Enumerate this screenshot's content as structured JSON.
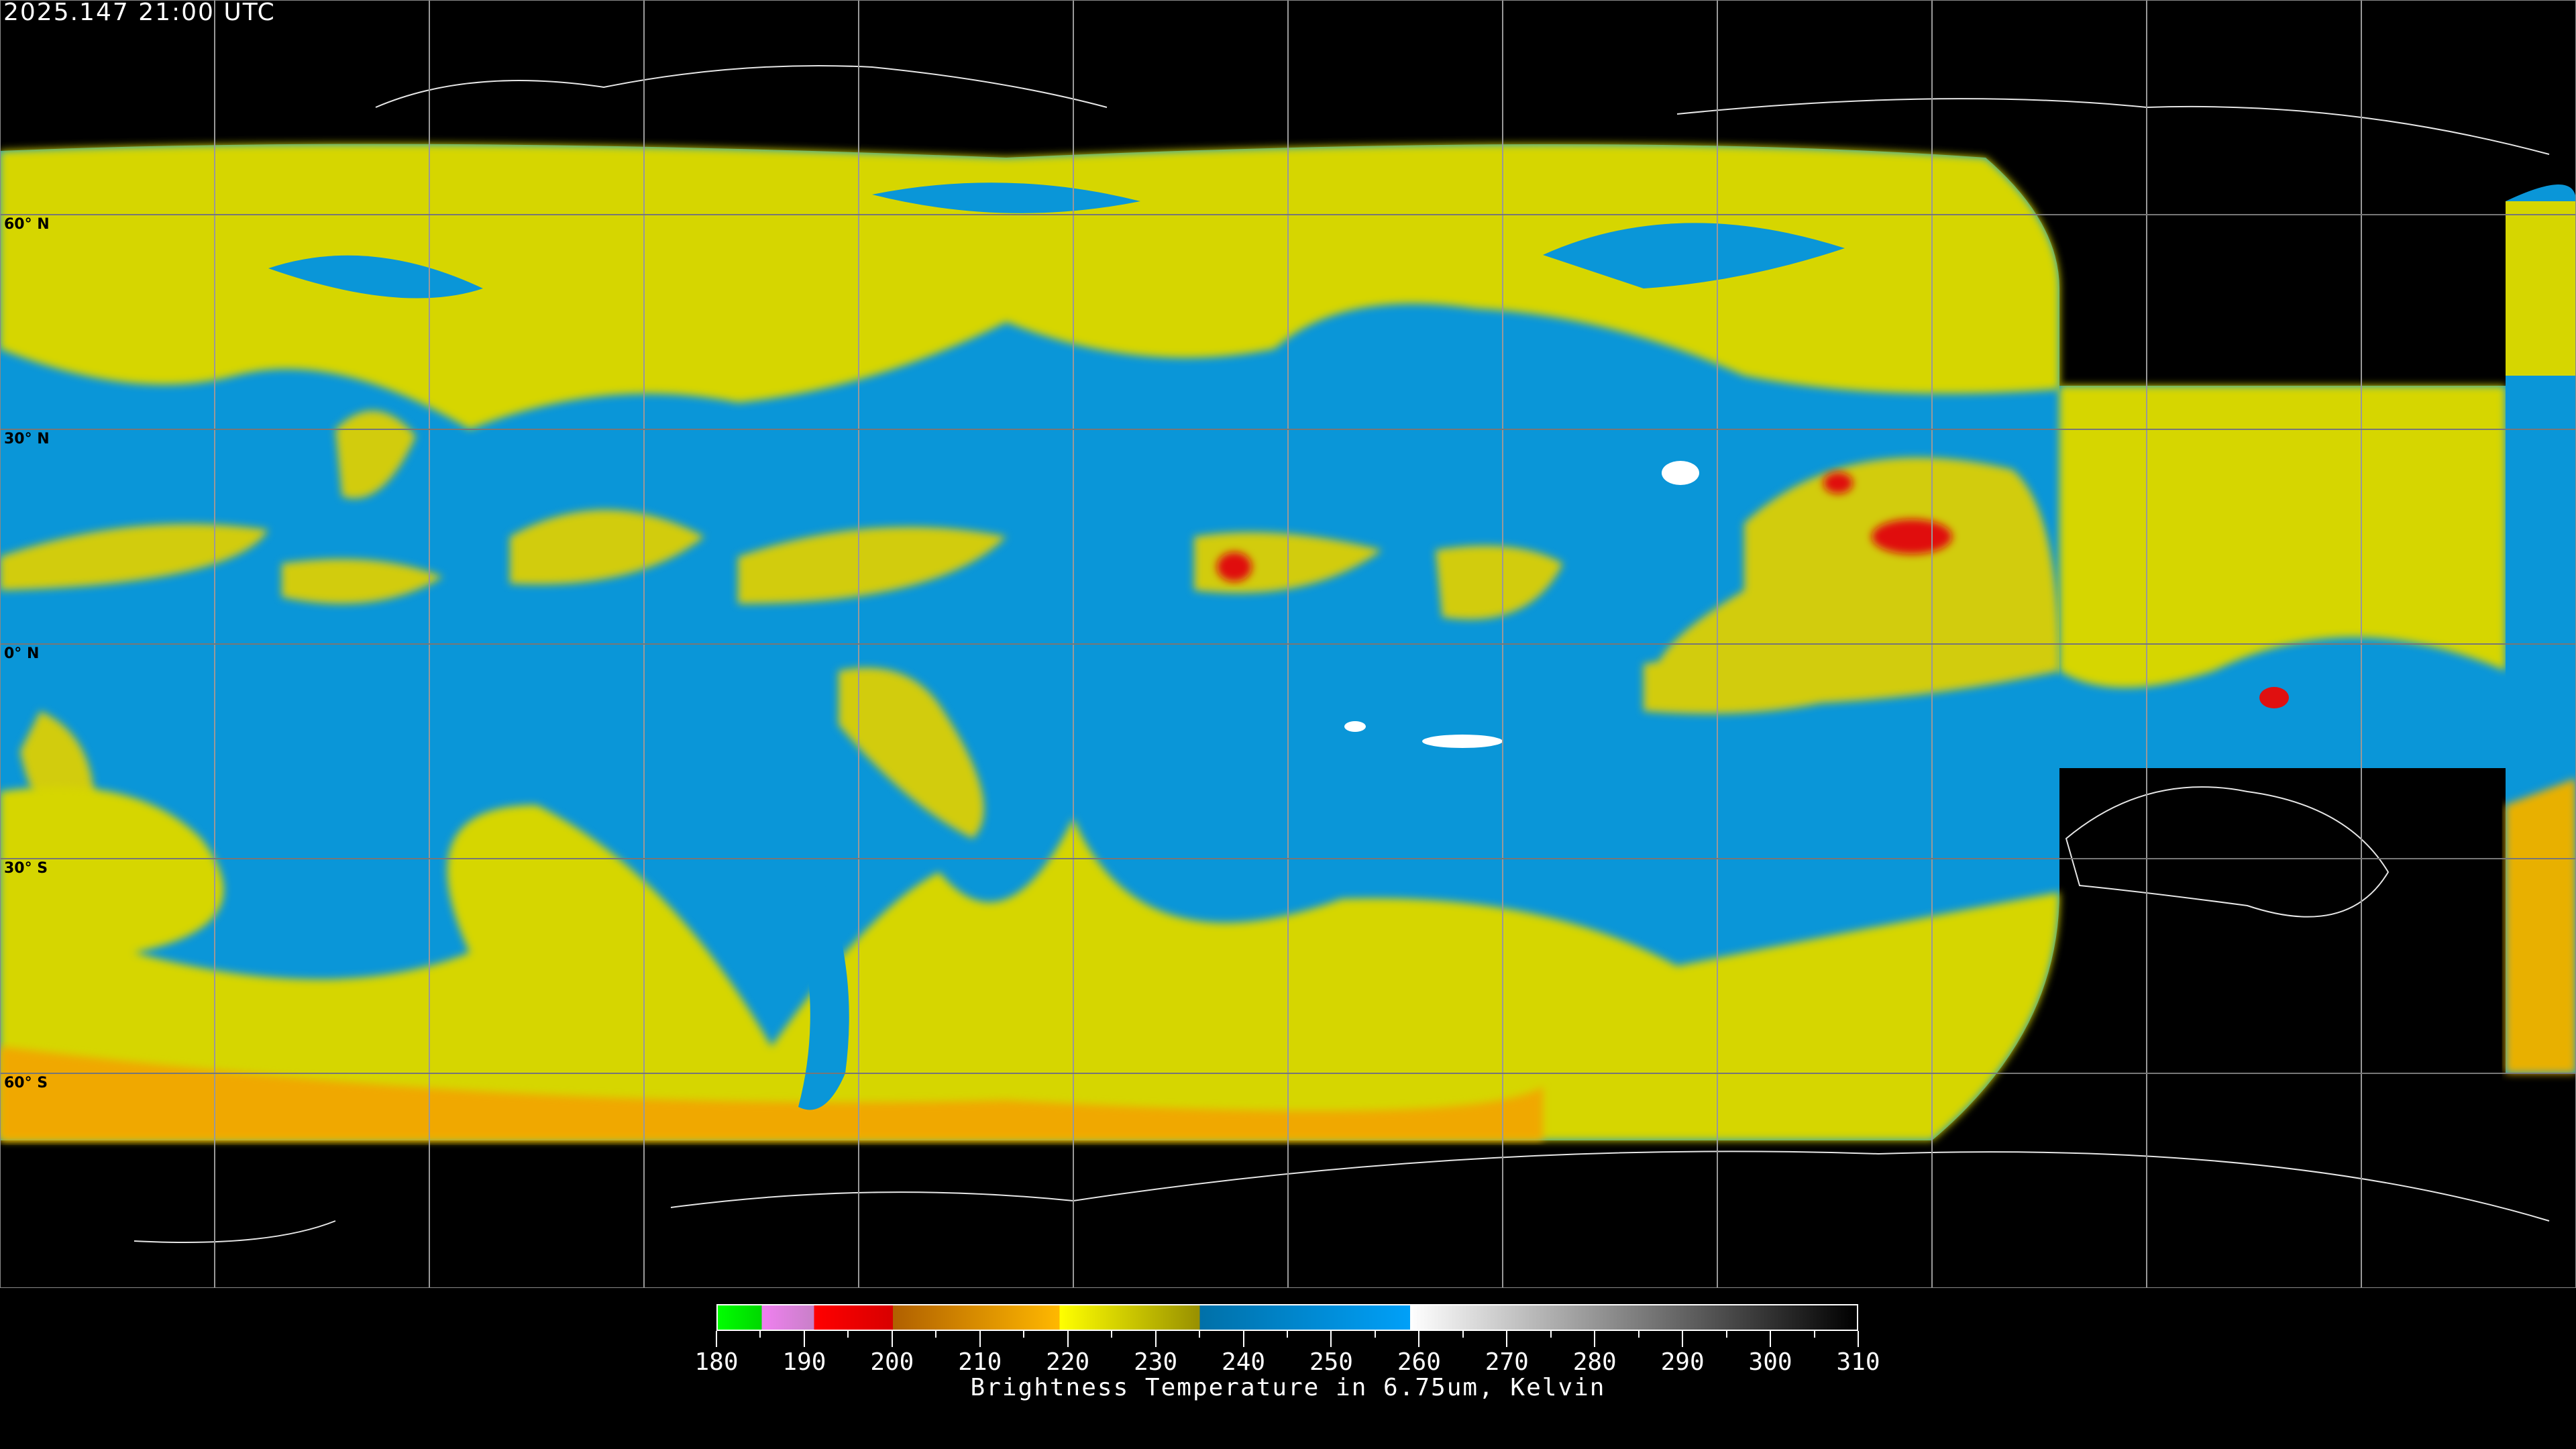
{
  "header": {
    "timestamp": "2025.147 21:00 UTC"
  },
  "map": {
    "projection": "equirectangular",
    "lat_labels": [
      "60° N",
      "30° N",
      "0° N",
      "30° S",
      "60° S"
    ],
    "gridline_spacing_deg": 30,
    "coastline_color": "#ffffff",
    "background_color": "#000000"
  },
  "colorbar": {
    "title": "Brightness Temperature in 6.75um, Kelvin",
    "min": 180,
    "max": 310,
    "tick_labels": [
      "180",
      "190",
      "200",
      "210",
      "220",
      "230",
      "240",
      "250",
      "260",
      "270",
      "280",
      "290",
      "300",
      "310"
    ],
    "segments": [
      {
        "from": 180,
        "to": 185,
        "colors": [
          "#00ff00",
          "#00d800"
        ]
      },
      {
        "from": 185,
        "to": 191,
        "colors": [
          "#f080f0",
          "#c880c8"
        ]
      },
      {
        "from": 191,
        "to": 200,
        "colors": [
          "#ff0000",
          "#d80000"
        ]
      },
      {
        "from": 200,
        "to": 219,
        "colors": [
          "#b06000",
          "#ffb800"
        ]
      },
      {
        "from": 219,
        "to": 235,
        "colors": [
          "#ffff00",
          "#989000"
        ]
      },
      {
        "from": 235,
        "to": 259,
        "colors": [
          "#0070a8",
          "#00a0f8"
        ]
      },
      {
        "from": 259,
        "to": 310,
        "colors": [
          "#ffffff",
          "#000000"
        ]
      }
    ]
  }
}
